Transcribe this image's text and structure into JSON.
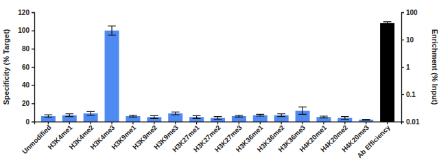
{
  "chart_data": {
    "type": "bar",
    "ylabel": "Specificity (% Target)",
    "y2label": "Enrichment (% Input)",
    "categories": [
      "Unmodified",
      "H3K4me1",
      "H3K4me2",
      "H3K4me3",
      "H3K9me1",
      "H3K9me2",
      "H3K9me3",
      "H3K27me1",
      "H3K27me2",
      "H3K27me3",
      "H3K36me1",
      "H3K36me2",
      "H3K36me3",
      "H4K20me1",
      "H4K20me2",
      "H4K20me3",
      "Ab Efficiency"
    ],
    "series": [
      {
        "color": "#4f8af2",
        "values": [
          6,
          7,
          9,
          100,
          6,
          5,
          9,
          5,
          4,
          6,
          7,
          7,
          12,
          5,
          4,
          2,
          null
        ],
        "errors": [
          1.5,
          1.5,
          2,
          5,
          1,
          1.5,
          1.5,
          1.5,
          1.5,
          1,
          1,
          1.5,
          4,
          1,
          1.5,
          0.5,
          null
        ]
      },
      {
        "color": "#000000",
        "axis": "y2",
        "values": [
          null,
          null,
          null,
          null,
          null,
          null,
          null,
          null,
          null,
          null,
          null,
          null,
          null,
          null,
          null,
          null,
          40
        ],
        "errors": [
          null,
          null,
          null,
          null,
          null,
          null,
          null,
          null,
          null,
          null,
          null,
          null,
          null,
          null,
          null,
          null,
          5
        ]
      }
    ],
    "ylim": [
      0,
      120
    ],
    "yticks": [
      0,
      20,
      40,
      60,
      80,
      100,
      120
    ],
    "y2lim": [
      0.01,
      100
    ],
    "y2ticks": [
      0.01,
      0.1,
      1,
      10,
      100
    ],
    "log": "y2",
    "grid": false
  }
}
